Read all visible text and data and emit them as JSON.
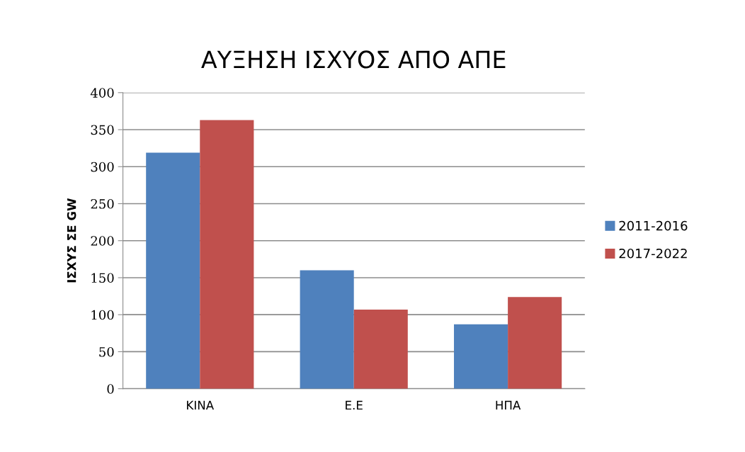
{
  "chart_data": {
    "type": "bar",
    "title": "ΑΥΞΗΣΗ ΙΣΧΥΟΣ ΑΠΟ ΑΠΕ",
    "ylabel": "ΙΣΧΥΣ ΣΕ GW",
    "categories": [
      "ΚΙΝΑ",
      "Ε.Ε",
      "ΗΠΑ"
    ],
    "series": [
      {
        "name": "2011-2016",
        "color": "#4f81bd",
        "values": [
          319,
          160,
          87
        ]
      },
      {
        "name": "2017-2022",
        "color": "#c0504d",
        "values": [
          363,
          107,
          124
        ]
      }
    ],
    "ylim": [
      0,
      400
    ],
    "yticks": [
      0,
      50,
      100,
      150,
      200,
      250,
      300,
      350,
      400
    ],
    "grid": "y",
    "legend": "right"
  }
}
